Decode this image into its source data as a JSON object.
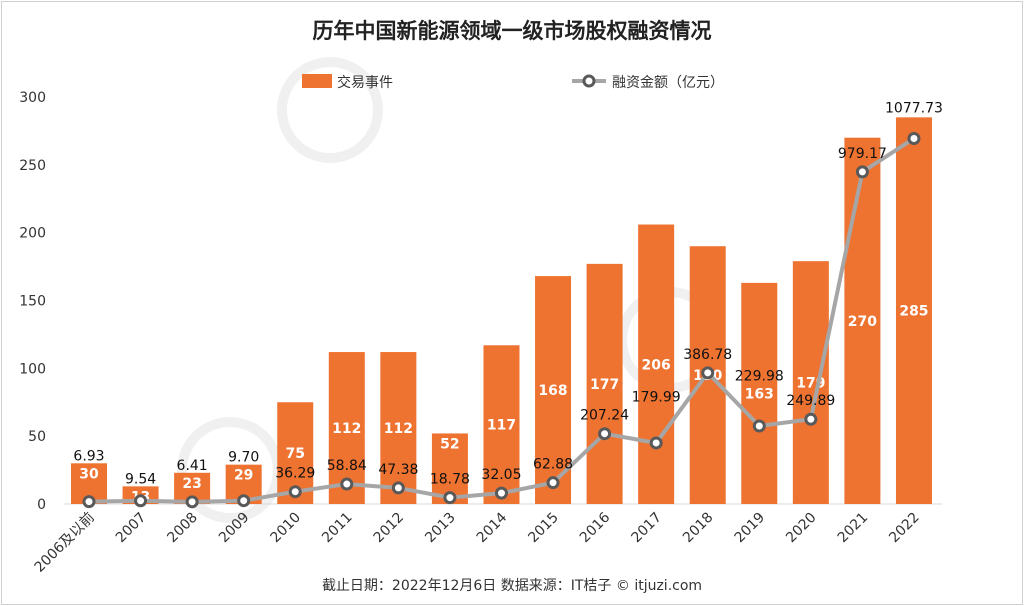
{
  "chart_data": {
    "type": "bar+line",
    "title": "历年中国新能源领域一级市场股权融资情况",
    "categories": [
      "2006及以前",
      "2007",
      "2008",
      "2009",
      "2010",
      "2011",
      "2012",
      "2013",
      "2014",
      "2015",
      "2016",
      "2017",
      "2018",
      "2019",
      "2020",
      "2021",
      "2022"
    ],
    "series": [
      {
        "name": "交易事件",
        "type": "bar",
        "color": "#ee7230",
        "axis": "left",
        "values": [
          30,
          13,
          23,
          29,
          75,
          112,
          112,
          52,
          117,
          168,
          177,
          206,
          190,
          163,
          179,
          270,
          285
        ]
      },
      {
        "name": "融资金额（亿元）",
        "type": "line",
        "color": "#a6a6a6",
        "marker_color": "#595959",
        "axis": "right-hidden",
        "values": [
          6.93,
          9.54,
          6.41,
          9.7,
          36.29,
          58.84,
          47.38,
          18.78,
          32.05,
          62.88,
          207.24,
          179.99,
          386.78,
          229.98,
          249.89,
          979.17,
          1077.73
        ]
      }
    ],
    "y_left": {
      "range": [
        0,
        300
      ],
      "ticks": [
        0,
        50,
        100,
        150,
        200,
        250,
        300
      ]
    },
    "y_right": {
      "range": [
        0,
        1200
      ],
      "visible": false
    },
    "legend": "top-center",
    "grid": false,
    "footer": "截止日期：2022年12月6日    数据来源：IT桔子 © itjuzi.com",
    "watermark": "IT桔子 ITJUZI.COM"
  }
}
